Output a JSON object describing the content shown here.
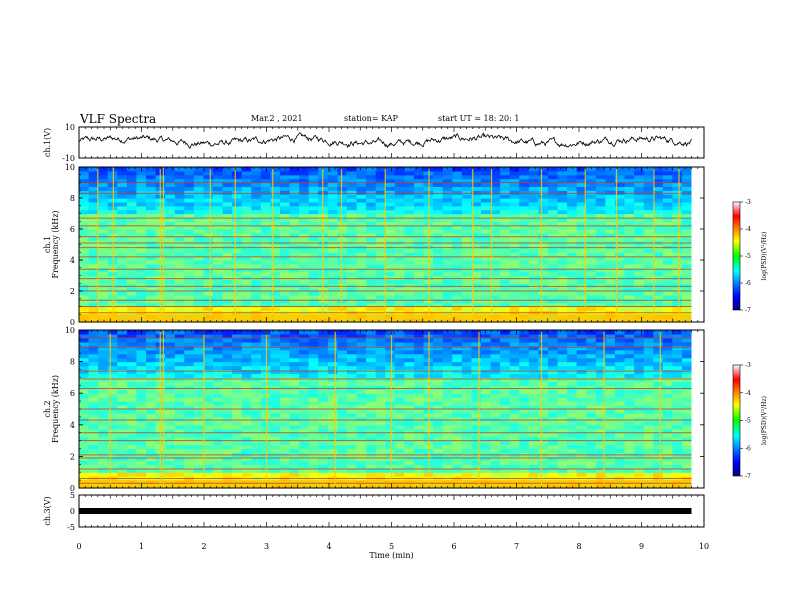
{
  "header": {
    "title": "VLF Spectra",
    "date": "Mar.2 , 2021",
    "station": "station= KAP",
    "start": "start UT = 18: 20: 1"
  },
  "chart_data": [
    {
      "type": "line",
      "panel": "ch1-waveform",
      "ylabel": "ch.1(V)",
      "ylim": [
        -10,
        10
      ],
      "yticks": [
        "10",
        "-10"
      ],
      "xlim": [
        0,
        9.8
      ],
      "description_values": "noisy waveform, amplitude mostly within -4..+6 V"
    },
    {
      "type": "heatmap",
      "panel": "ch1-spectrogram",
      "ylabel": "ch.1\nFrequency (kHz)",
      "ylim": [
        0,
        10
      ],
      "yticks": [
        "0",
        "2",
        "4",
        "6",
        "8",
        "10"
      ],
      "xlim": [
        0,
        9.8
      ],
      "colorbar": {
        "label": "log(PSD)(V²/Hz)",
        "range": [
          -7,
          -3
        ],
        "ticks": [
          "-3",
          "-4",
          "-5",
          "-6",
          "-7"
        ]
      },
      "tonal_lines_khz": [
        0.6,
        1.0,
        1.4,
        2.0,
        2.3,
        2.8,
        3.4,
        4.2,
        4.8,
        5.1,
        5.5,
        6.2,
        6.7,
        8.3,
        9.0
      ],
      "impulse_times_min": [
        0.3,
        0.55,
        1.3,
        1.35,
        2.1,
        2.5,
        3.1,
        3.9,
        4.2,
        4.9,
        5.6,
        6.3,
        6.6,
        7.4,
        8.1,
        8.6,
        9.2,
        9.6
      ]
    },
    {
      "type": "heatmap",
      "panel": "ch2-spectrogram",
      "ylabel": "ch.2\nFrequency (kHz)",
      "ylim": [
        0,
        10
      ],
      "yticks": [
        "0",
        "2",
        "4",
        "6",
        "8",
        "10"
      ],
      "xlim": [
        0,
        9.8
      ],
      "colorbar": {
        "label": "log(PSD)(V²/Hz)",
        "range": [
          -7,
          -3
        ],
        "ticks": [
          "-3",
          "-4",
          "-5",
          "-6",
          "-7"
        ]
      },
      "tonal_lines_khz": [
        0.3,
        0.6,
        1.2,
        1.9,
        2.1,
        3.0,
        3.5,
        4.3,
        5.0,
        6.3,
        6.9,
        7.4,
        8.9,
        9.5
      ],
      "impulse_times_min": [
        0.5,
        1.3,
        1.35,
        2.0,
        3.0,
        4.1,
        5.0,
        5.6,
        6.4,
        7.4,
        8.4,
        9.3
      ]
    },
    {
      "type": "line",
      "panel": "ch3-waveform",
      "ylabel": "ch.3(V)",
      "ylim": [
        -5,
        5
      ],
      "yticks": [
        "5",
        "0",
        "-5"
      ],
      "xlim": [
        0,
        9.8
      ],
      "level_v": 0,
      "xlabel": "Time (min)",
      "xticks": [
        "0",
        "1",
        "2",
        "3",
        "4",
        "5",
        "6",
        "7",
        "8",
        "9",
        "10"
      ]
    }
  ]
}
